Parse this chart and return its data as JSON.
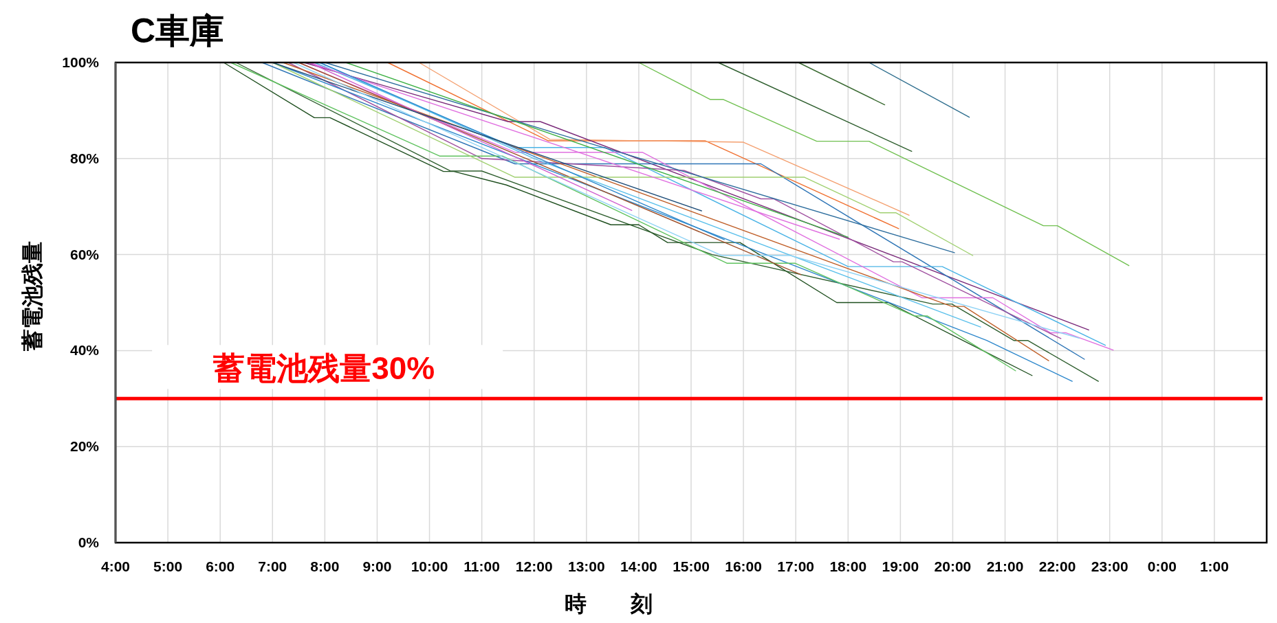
{
  "chart_data": {
    "type": "line",
    "title": "C車庫",
    "xlabel": "時　　刻",
    "ylabel": "蓄電池残量",
    "xlim": [
      "--01-01T04:00",
      "--01-02T02:00"
    ],
    "xticks": [
      {
        "value": "--01-01T04:00",
        "label": "4:00"
      },
      {
        "value": "--01-01T05:00",
        "label": "5:00"
      },
      {
        "value": "--01-01T06:00",
        "label": "6:00"
      },
      {
        "value": "--01-01T07:00",
        "label": "7:00"
      },
      {
        "value": "--01-01T08:00",
        "label": "8:00"
      },
      {
        "value": "--01-01T09:00",
        "label": "9:00"
      },
      {
        "value": "--01-01T10:00",
        "label": "10:00"
      },
      {
        "value": "--01-01T11:00",
        "label": "11:00"
      },
      {
        "value": "--01-01T12:00",
        "label": "12:00"
      },
      {
        "value": "--01-01T13:00",
        "label": "13:00"
      },
      {
        "value": "--01-01T14:00",
        "label": "14:00"
      },
      {
        "value": "--01-01T15:00",
        "label": "15:00"
      },
      {
        "value": "--01-01T16:00",
        "label": "16:00"
      },
      {
        "value": "--01-01T17:00",
        "label": "17:00"
      },
      {
        "value": "--01-01T18:00",
        "label": "18:00"
      },
      {
        "value": "--01-01T19:00",
        "label": "19:00"
      },
      {
        "value": "--01-01T20:00",
        "label": "20:00"
      },
      {
        "value": "--01-01T21:00",
        "label": "21:00"
      },
      {
        "value": "--01-01T22:00",
        "label": "22:00"
      },
      {
        "value": "--01-01T23:00",
        "label": "23:00"
      },
      {
        "value": "--01-02T00:00",
        "label": "0:00"
      },
      {
        "value": "--01-02T01:00",
        "label": "1:00"
      }
    ],
    "ylim": [
      0,
      100
    ],
    "yticks": [
      {
        "value": 0,
        "label": "0%"
      },
      {
        "value": 20,
        "label": "20%"
      },
      {
        "value": 40,
        "label": "40%"
      },
      {
        "value": 60,
        "label": "60%"
      },
      {
        "value": 80,
        "label": "80%"
      },
      {
        "value": 100,
        "label": "100%"
      }
    ],
    "grid": true,
    "marker": "none",
    "line_style": "solid",
    "ref_lines": [
      {
        "axis": "y",
        "value": 30,
        "label": "蓄電池残量30%",
        "color": "#ff0000"
      }
    ],
    "series": [
      {
        "color": "#70c050",
        "x": [
          "--01-01T14:00",
          "--01-01T15:22",
          "--01-01T15:37",
          "--01-01T17:24",
          "--01-01T18:24",
          "--01-01T21:44",
          "--01-01T22:00",
          "--01-01T23:22"
        ],
        "values": [
          100,
          92.3,
          92.3,
          83.6,
          83.6,
          66,
          66,
          57.7
        ]
      },
      {
        "color": "#2e5e2e",
        "x": [
          "--01-01T15:31",
          "--01-01T19:13"
        ],
        "values": [
          100,
          81.5
        ]
      },
      {
        "color": "#3a6a32",
        "x": [
          "--01-01T17:03",
          "--01-01T18:42"
        ],
        "values": [
          100,
          91.2
        ]
      },
      {
        "color": "#2e6e8e",
        "x": [
          "--01-01T18:24",
          "--01-01T20:19"
        ],
        "values": [
          100,
          88.6
        ]
      },
      {
        "color": "#f07030",
        "x": [
          "--01-01T09:12",
          "--01-01T12:16",
          "--01-01T15:16",
          "--01-01T18:58"
        ],
        "values": [
          100,
          83.7,
          83.7,
          65.4
        ]
      },
      {
        "color": "#f4a070",
        "x": [
          "--01-01T09:48",
          "--01-01T12:18",
          "--01-01T16:00",
          "--01-01T19:10"
        ],
        "values": [
          100,
          84,
          83.4,
          68.2
        ]
      },
      {
        "color": "#7a2a7a",
        "x": [
          "--01-01T07:36",
          "--01-01T11:30",
          "--01-01T12:07",
          "--01-01T22:36"
        ],
        "values": [
          100,
          87.7,
          87.7,
          44.3
        ]
      },
      {
        "color": "#2e75b6",
        "x": [
          "--01-01T06:48",
          "--01-01T11:38",
          "--01-01T16:20",
          "--01-01T22:31"
        ],
        "values": [
          100,
          78.9,
          78.9,
          38.2
        ]
      },
      {
        "color": "#4bb4e6",
        "x": [
          "--01-01T07:48",
          "--01-01T11:38",
          "--01-01T13:21",
          "--01-01T18:00",
          "--01-01T19:48",
          "--01-01T22:55"
        ],
        "values": [
          100,
          82.3,
          82.3,
          57.5,
          57.5,
          41.1
        ]
      },
      {
        "color": "#e070e0",
        "x": [
          "--01-01T07:30",
          "--01-01T11:38",
          "--01-01T14:04",
          "--01-01T19:25",
          "--01-01T20:46",
          "--01-01T21:52",
          "--01-01T22:10",
          "--01-01T23:04"
        ],
        "values": [
          100,
          81.3,
          81.3,
          51,
          51,
          43.7,
          43.7,
          40.1
        ]
      },
      {
        "color": "#a050a0",
        "x": [
          "--01-01T07:18",
          "--01-01T11:00",
          "--01-01T14:52",
          "--01-01T16:20",
          "--01-01T16:35",
          "--01-01T18:52",
          "--01-01T19:02",
          "--01-01T22:04"
        ],
        "values": [
          100,
          80,
          77.5,
          71.6,
          71.6,
          58.5,
          58.5,
          42.5
        ]
      },
      {
        "color": "#1e4e1e",
        "x": [
          "--01-01T06:04",
          "--01-01T07:48",
          "--01-01T08:06",
          "--01-01T10:16",
          "--01-01T10:28",
          "--01-01T11:28",
          "--01-01T13:28",
          "--01-01T14:00",
          "--01-01T14:33",
          "--01-01T15:56",
          "--01-01T17:47",
          "--01-01T18:46",
          "--01-01T21:31"
        ],
        "values": [
          100,
          88.5,
          88.5,
          77.3,
          77.3,
          74.5,
          66.2,
          66.2,
          62.5,
          62.5,
          50,
          50,
          34.8
        ]
      },
      {
        "color": "#2e5e2e",
        "x": [
          "--01-01T06:18",
          "--01-01T10:24",
          "--01-01T11:00",
          "--01-01T15:24",
          "--01-01T19:37",
          "--01-01T19:59",
          "--01-01T21:10",
          "--01-01T21:26",
          "--01-01T22:47"
        ],
        "values": [
          100,
          77.4,
          77.4,
          60,
          49.7,
          49.7,
          42.1,
          42.1,
          33.6
        ]
      },
      {
        "color": "#2e88cc",
        "x": [
          "--01-01T07:00",
          "--01-01T20:39",
          "--01-01T22:17"
        ],
        "values": [
          100,
          42.1,
          33.6
        ]
      },
      {
        "color": "#5ec25e",
        "x": [
          "--01-01T06:12",
          "--01-01T10:12",
          "--01-01T11:24",
          "--01-01T15:41",
          "--01-01T16:59",
          "--01-01T19:16",
          "--01-01T19:31",
          "--01-01T21:12"
        ],
        "values": [
          100,
          80.5,
          80.5,
          58.2,
          58.2,
          47.2,
          47.2,
          35.8
        ]
      },
      {
        "color": "#c0602a",
        "x": [
          "--01-01T07:12",
          "--01-01T19:59",
          "--01-01T20:13",
          "--01-01T21:50"
        ],
        "values": [
          100,
          49.2,
          49.2,
          37.9
        ]
      },
      {
        "color": "#a0522d",
        "x": [
          "--01-01T07:30",
          "--01-01T17:06"
        ],
        "values": [
          100,
          55.8
        ]
      },
      {
        "color": "#5bc0eb",
        "x": [
          "--01-01T07:54",
          "--01-01T12:00",
          "--01-01T20:32"
        ],
        "values": [
          100,
          80,
          44.9
        ]
      },
      {
        "color": "#a0d070",
        "x": [
          "--01-01T07:00",
          "--01-01T11:38",
          "--01-01T17:10",
          "--01-01T18:37",
          "--01-01T18:55",
          "--01-01T20:23"
        ],
        "values": [
          100,
          76.1,
          76.1,
          68.7,
          68.7,
          59.8
        ]
      },
      {
        "color": "#2e6e9e",
        "x": [
          "--01-01T08:00",
          "--01-01T12:30",
          "--01-01T20:02"
        ],
        "values": [
          100,
          85,
          60.4
        ]
      },
      {
        "color": "#e070e0",
        "x": [
          "--01-01T07:42",
          "--01-01T17:50"
        ],
        "values": [
          100,
          63.2
        ]
      },
      {
        "color": "#3cb043",
        "x": [
          "--01-01T08:24",
          "--01-01T18:00"
        ],
        "values": [
          100,
          63.6
        ]
      },
      {
        "color": "#2e88cc",
        "x": [
          "--01-01T07:54",
          "--01-01T15:38"
        ],
        "values": [
          100,
          63.1
        ]
      },
      {
        "color": "#d060d0",
        "x": [
          "--01-01T07:42",
          "--01-01T13:52"
        ],
        "values": [
          100,
          69.2
        ]
      },
      {
        "color": "#1f4e79",
        "x": [
          "--01-01T07:00",
          "--01-01T15:12"
        ],
        "values": [
          100,
          69.1
        ]
      },
      {
        "color": "#8fd3f5",
        "x": [
          "--01-01T07:24",
          "--01-01T15:35",
          "--01-01T16:54",
          "--01-01T22:25"
        ],
        "values": [
          100,
          59.8,
          59.8,
          42.6
        ]
      }
    ]
  }
}
